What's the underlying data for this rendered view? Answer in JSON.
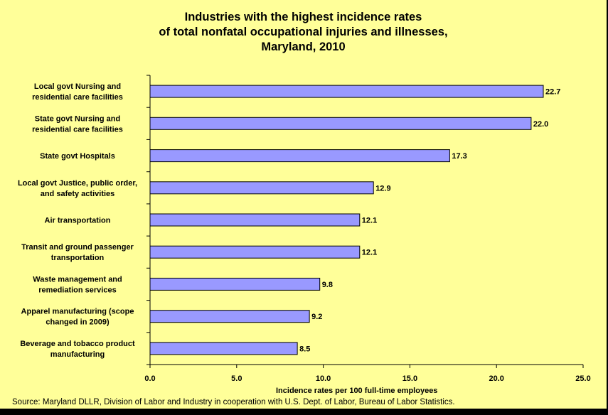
{
  "chart_data": {
    "type": "bar",
    "orientation": "horizontal",
    "title_lines": [
      "Industries with the highest incidence rates",
      "of total nonfatal occupational injuries and illnesses,",
      "Maryland, 2010"
    ],
    "categories": [
      [
        "Local govt Nursing and",
        "residential care facilities"
      ],
      [
        "State govt Nursing and",
        "residential care facilities"
      ],
      [
        "State govt Hospitals"
      ],
      [
        "Local govt Justice, public order,",
        "and safety activities"
      ],
      [
        "Air transportation"
      ],
      [
        "Transit and ground passenger",
        "transportation"
      ],
      [
        "Waste management and",
        "remediation services"
      ],
      [
        "Apparel manufacturing (scope",
        "changed in 2009)"
      ],
      [
        "Beverage and tobacco product",
        "manufacturing"
      ]
    ],
    "values": [
      22.7,
      22.0,
      17.3,
      12.9,
      12.1,
      12.1,
      9.8,
      9.2,
      8.5
    ],
    "data_labels": [
      "22.7",
      "22.0",
      "17.3",
      "12.9",
      "12.1",
      "12.1",
      "9.8",
      "9.2",
      "8.5"
    ],
    "xlabel": "Incidence rates per 100 full-time employees",
    "ylabel": "",
    "xlim": [
      0,
      25
    ],
    "xticks": [
      "0.0",
      "5.0",
      "10.0",
      "15.0",
      "20.0",
      "25.0"
    ],
    "grid": false,
    "legend": "none",
    "colors": {
      "bar_fill": "#9999FF",
      "bar_stroke": "#000000",
      "background": "#FFFF99",
      "frame": "#000000"
    }
  },
  "source": "Source: Maryland DLLR, Division of Labor and Industry in cooperation with U.S. Dept. of Labor, Bureau of Labor Statistics."
}
